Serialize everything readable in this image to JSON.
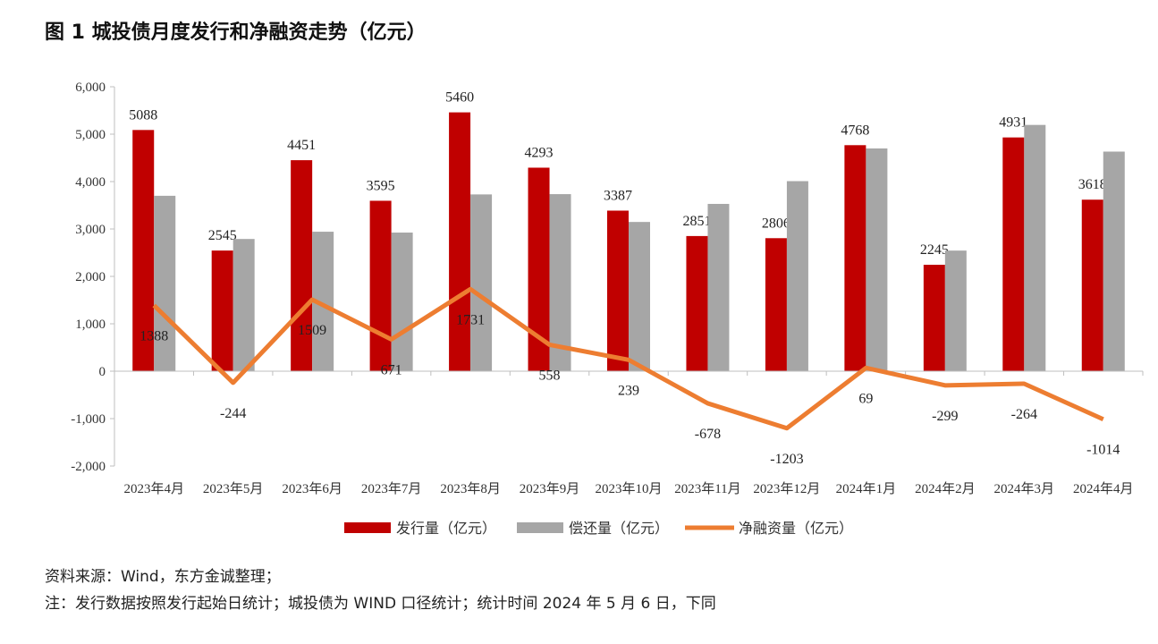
{
  "chart_data": {
    "type": "bar+line",
    "title": "图 1  城投债月度发行和净融资走势（亿元）",
    "categories": [
      "2023年4月",
      "2023年5月",
      "2023年6月",
      "2023年7月",
      "2023年8月",
      "2023年9月",
      "2023年10月",
      "2023年11月",
      "2023年12月",
      "2024年1月",
      "2024年2月",
      "2024年3月",
      "2024年4月"
    ],
    "series": [
      {
        "name": "发行量（亿元）",
        "type": "bar",
        "color": "#C00000",
        "values": [
          5088,
          2545,
          4451,
          3595,
          5460,
          4293,
          3387,
          2851,
          2806,
          4768,
          2245,
          4931,
          3618
        ]
      },
      {
        "name": "偿还量（亿元）",
        "type": "bar",
        "color": "#A6A6A6",
        "values": [
          3700,
          2789,
          2942,
          2924,
          3729,
          3735,
          3148,
          3529,
          4009,
          4699,
          2544,
          5195,
          4632
        ]
      },
      {
        "name": "净融资量（亿元）",
        "type": "line",
        "color": "#ED7D31",
        "values": [
          1388,
          -244,
          1509,
          671,
          1731,
          558,
          239,
          -678,
          -1203,
          69,
          -299,
          -264,
          -1014
        ]
      }
    ],
    "ylim": [
      -2000,
      6000
    ],
    "yticks": [
      -2000,
      -1000,
      0,
      1000,
      2000,
      3000,
      4000,
      5000,
      6000
    ],
    "ytick_labels": [
      "-2,000",
      "-1,000",
      "0",
      "1,000",
      "2,000",
      "3,000",
      "4,000",
      "5,000",
      "6,000"
    ],
    "legend": "bottom",
    "grid": false
  },
  "notes": {
    "source": "资料来源：Wind，东方金诚整理；",
    "remark": "注：发行数据按照发行起始日统计；城投债为 WIND 口径统计；统计时间 2024 年 5 月 6 日，下同"
  }
}
